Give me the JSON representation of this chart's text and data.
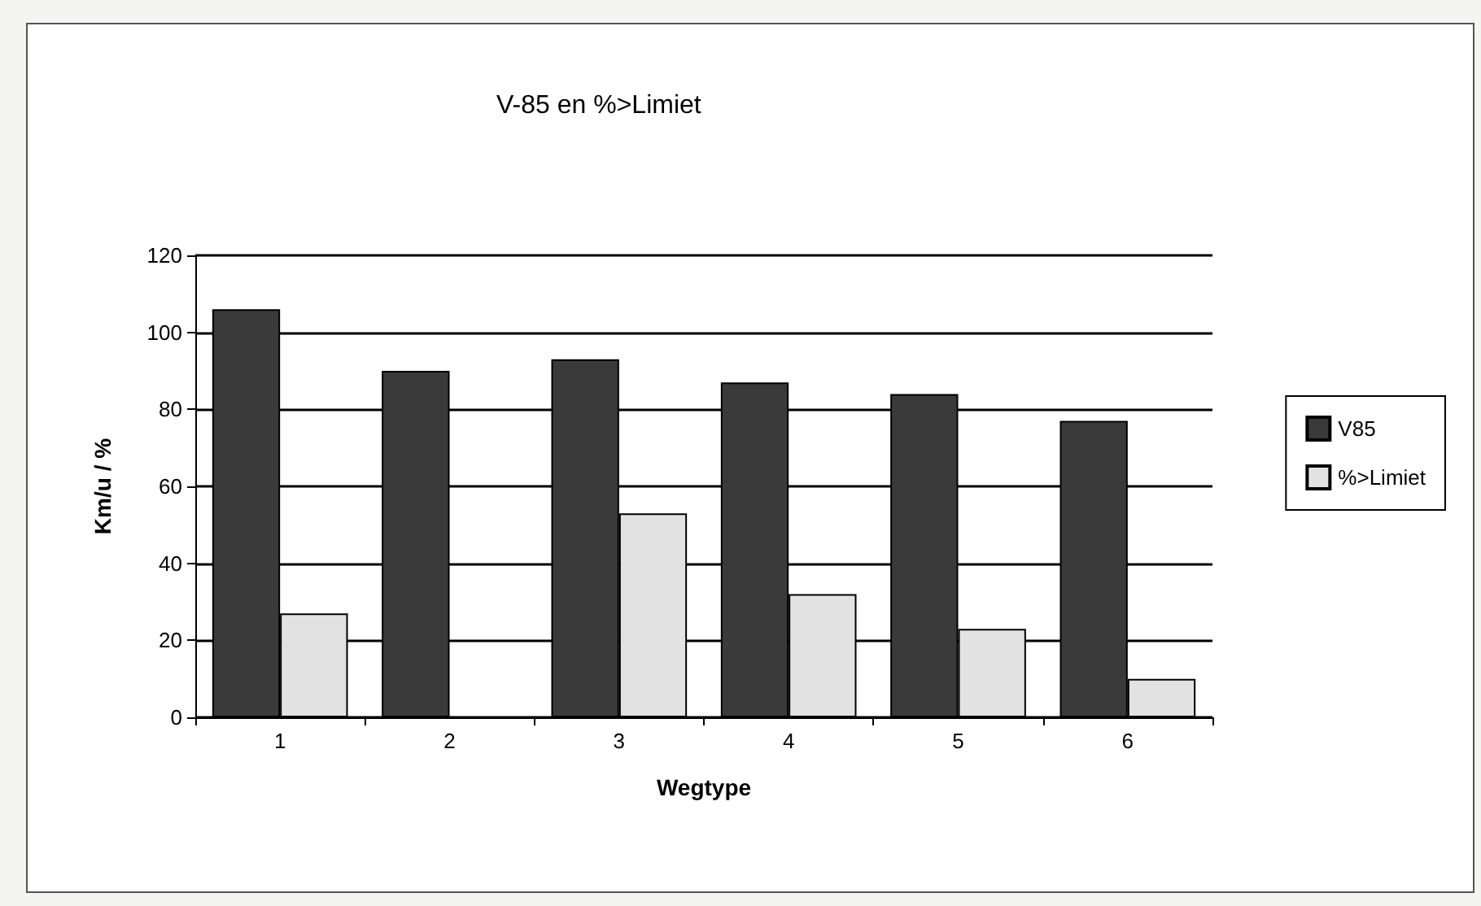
{
  "chart_data": {
    "type": "bar",
    "title": "V-85 en %>Limiet",
    "xlabel": "Wegtype",
    "ylabel": "Km/u / %",
    "categories": [
      "1",
      "2",
      "3",
      "4",
      "5",
      "6"
    ],
    "series": [
      {
        "name": "V85",
        "color": "#3a3a3a",
        "values": [
          106,
          90,
          93,
          87,
          84,
          77
        ]
      },
      {
        "name": "%>Limiet",
        "color": "#e2e2e2",
        "values": [
          27,
          0,
          53,
          32,
          23,
          10
        ]
      }
    ],
    "ylim": [
      0,
      120
    ],
    "yticks": [
      0,
      20,
      40,
      60,
      80,
      100,
      120
    ],
    "grid": "y",
    "legend": "right"
  }
}
